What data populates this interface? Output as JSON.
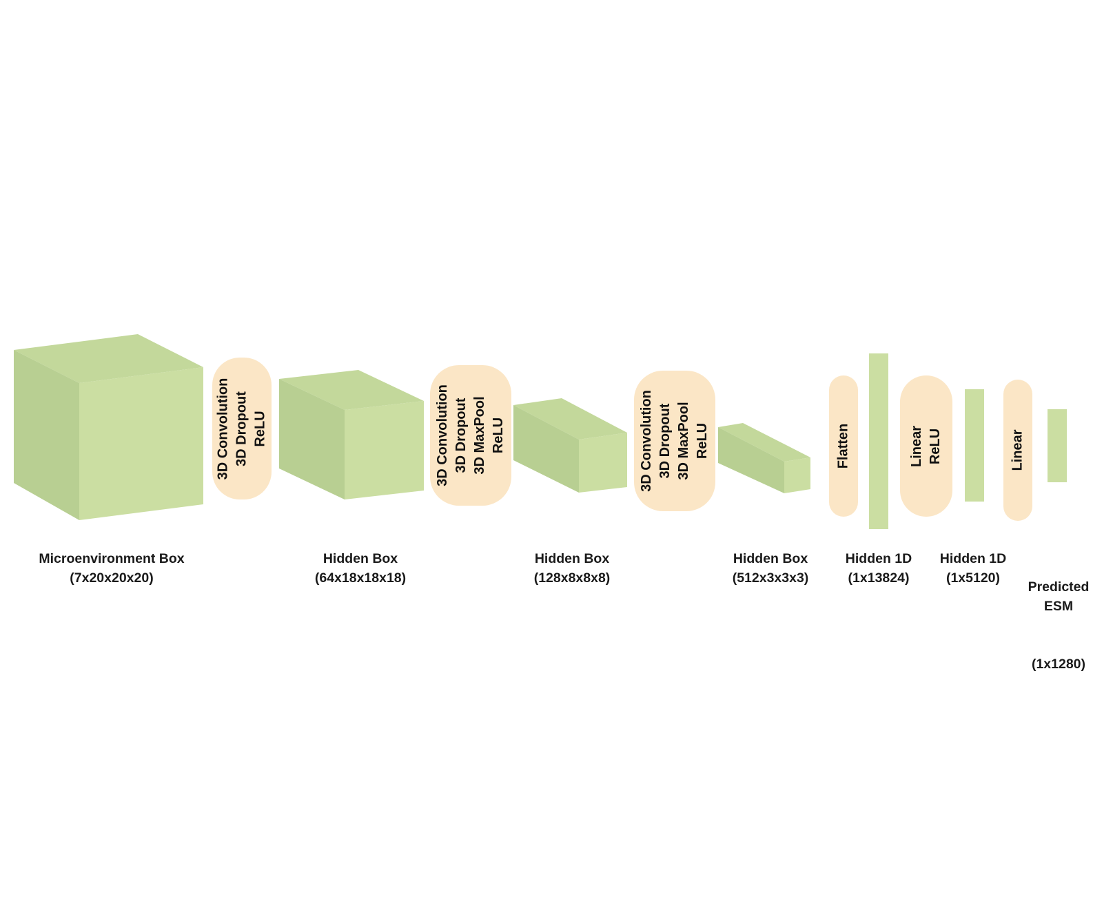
{
  "colors": {
    "box_front": "#cbdea2",
    "box_side": "#b8cf92",
    "box_top": "#c3d89b",
    "op_fill": "#fbe6c6",
    "text": "#111111"
  },
  "layers": [
    {
      "name": "Microenvironment Box",
      "shape": "(7x20x20x20)"
    },
    {
      "name": "Hidden Box",
      "shape": "(64x18x18x18)"
    },
    {
      "name": "Hidden Box",
      "shape": "(128x8x8x8)"
    },
    {
      "name": "Hidden Box",
      "shape": "(512x3x3x3)"
    },
    {
      "name": "Hidden 1D",
      "shape": "(1x13824)"
    },
    {
      "name": "Hidden 1D",
      "shape": "(1x5120)"
    },
    {
      "name": "Predicted\nESM",
      "shape": "(1x1280)"
    }
  ],
  "operations": [
    {
      "text": "3D Convolution\n3D Dropout\nReLU"
    },
    {
      "text": "3D Convolution\n3D Dropout\n3D MaxPool\nReLU"
    },
    {
      "text": "3D Convolution\n3D Dropout\n3D MaxPool\nReLU"
    },
    {
      "text": "Flatten"
    },
    {
      "text": "Linear\nReLU"
    },
    {
      "text": "Linear"
    }
  ]
}
